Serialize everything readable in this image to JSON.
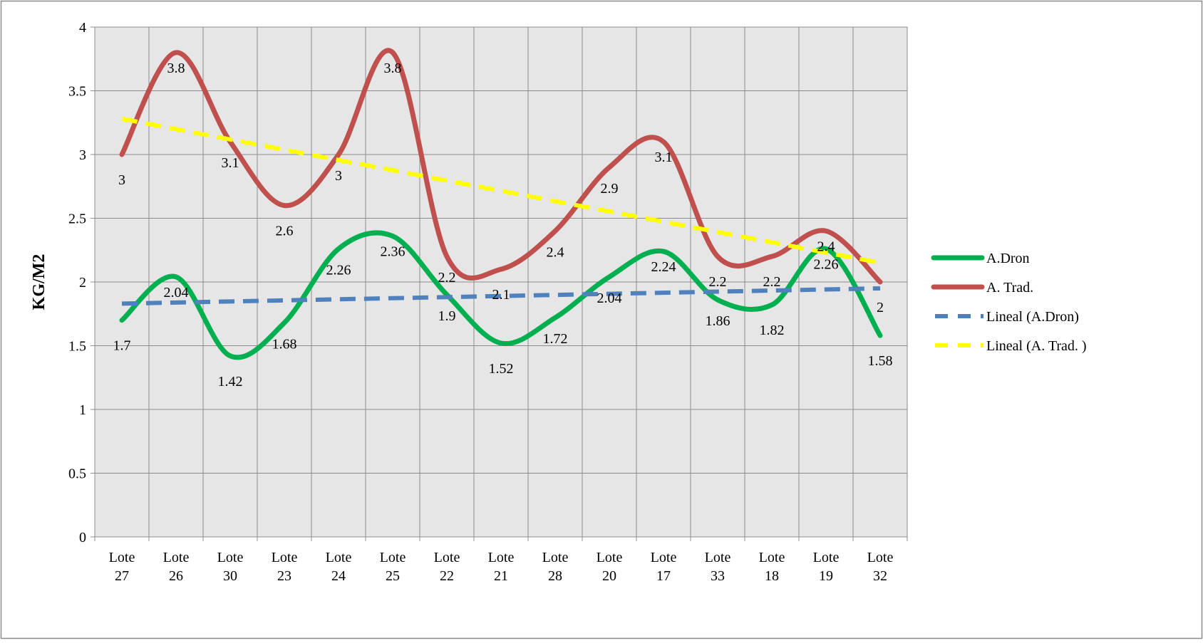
{
  "chart_data": {
    "type": "line",
    "title": "",
    "xlabel": "",
    "ylabel": "KG/M2",
    "ylim": [
      0,
      4
    ],
    "yticks": [
      "0",
      "0.5",
      "1",
      "1.5",
      "2",
      "2.5",
      "3",
      "3.5",
      "4"
    ],
    "categories": [
      [
        "Lote",
        "27"
      ],
      [
        "Lote",
        "26"
      ],
      [
        "Lote",
        "30"
      ],
      [
        "Lote",
        "23"
      ],
      [
        "Lote",
        "24"
      ],
      [
        "Lote",
        "25"
      ],
      [
        "Lote",
        "22"
      ],
      [
        "Lote",
        "21"
      ],
      [
        "Lote",
        "28"
      ],
      [
        "Lote",
        "20"
      ],
      [
        "Lote",
        "17"
      ],
      [
        "Lote",
        "33"
      ],
      [
        "Lote",
        "18"
      ],
      [
        "Lote",
        "19"
      ],
      [
        "Lote",
        "32"
      ]
    ],
    "series": [
      {
        "name": "A.Dron",
        "color": "#00B050",
        "values": [
          1.7,
          2.04,
          1.42,
          1.68,
          2.26,
          2.36,
          1.9,
          1.52,
          1.72,
          2.04,
          2.24,
          1.86,
          1.82,
          2.26,
          1.58
        ],
        "labels": [
          "1.7",
          "2.04",
          "1.42",
          "1.68",
          "2.26",
          "2.36",
          "1.9",
          "1.52",
          "1.72",
          "2.04",
          "2.24",
          "1.86",
          "1.82",
          "2.26",
          "1.58"
        ]
      },
      {
        "name": "A. Trad.",
        "color": "#C0504D",
        "values": [
          3,
          3.8,
          3.1,
          2.6,
          3,
          3.8,
          2.2,
          2.1,
          2.4,
          2.9,
          3.1,
          2.2,
          2.2,
          2.4,
          2
        ],
        "labels": [
          "3",
          "3.8",
          "3.1",
          "2.6",
          "3",
          "3.8",
          "2.2",
          "2.1",
          "2.4",
          "2.9",
          "3.1",
          "2.2",
          "2.2",
          "2.4",
          "2"
        ]
      }
    ],
    "trendlines": [
      {
        "name": "Lineal (A.Dron)",
        "series": "A.Dron",
        "color": "#4F81BD",
        "values": [
          1.83,
          1.95
        ]
      },
      {
        "name": "Lineal (A. Trad. )",
        "series": "A. Trad.",
        "color": "#FFFF00",
        "values": [
          3.28,
          2.15
        ]
      }
    ],
    "grid": true,
    "plot_background": "#E6E6E6",
    "legend": {
      "position": "right",
      "entries": [
        "A.Dron",
        "A. Trad.",
        "Lineal (A.Dron)",
        "Lineal (A. Trad. )"
      ]
    }
  }
}
